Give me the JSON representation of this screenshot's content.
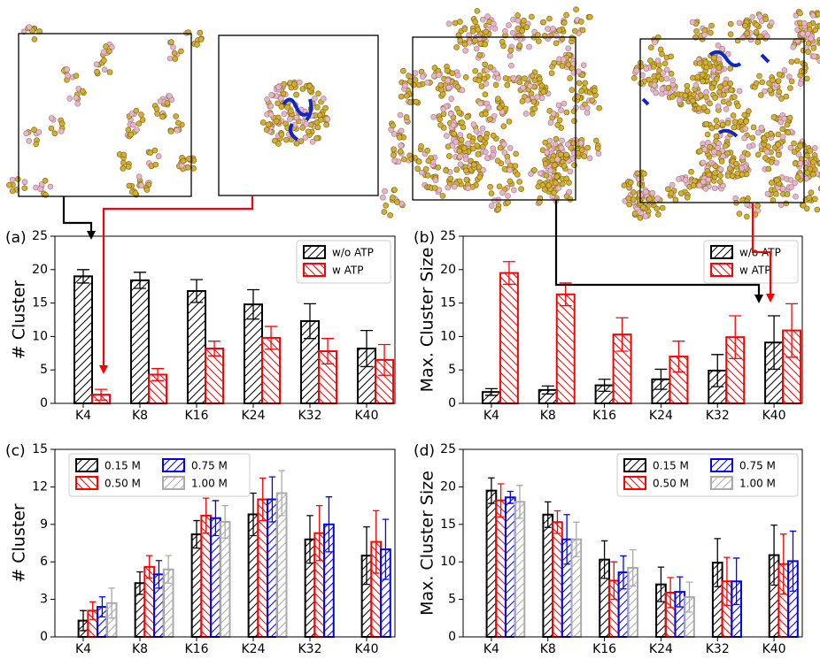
{
  "chart_data": [
    {
      "type": "bar",
      "label": "(a)",
      "ylabel": "# Cluster",
      "categories": [
        "K4",
        "K8",
        "K16",
        "K24",
        "K32",
        "K40"
      ],
      "ylim": [
        0,
        25
      ],
      "yticks": [
        0,
        5,
        10,
        15,
        20,
        25
      ],
      "legend": "upper right",
      "legend_columns": 1,
      "series": [
        {
          "name": "w/o ATP",
          "color": "#000000",
          "hatch": "/",
          "values": [
            19,
            18.4,
            16.8,
            14.8,
            12.3,
            8.2
          ],
          "errors": [
            1,
            1.2,
            1.7,
            2.2,
            2.6,
            2.7
          ]
        },
        {
          "name": "w ATP",
          "color": "#ff0000",
          "hatch": "\\",
          "values": [
            1.3,
            4.3,
            8.2,
            9.8,
            7.8,
            6.5
          ],
          "errors": [
            0.8,
            0.9,
            1.1,
            1.7,
            1.9,
            2.3
          ]
        }
      ]
    },
    {
      "type": "bar",
      "label": "(b)",
      "ylabel": "Max. Cluster Size",
      "categories": [
        "K4",
        "K8",
        "K16",
        "K24",
        "K32",
        "K40"
      ],
      "ylim": [
        0,
        25
      ],
      "yticks": [
        0,
        5,
        10,
        15,
        20,
        25
      ],
      "legend": "upper right",
      "legend_columns": 1,
      "series": [
        {
          "name": "w/o ATP",
          "color": "#000000",
          "hatch": "/",
          "values": [
            1.7,
            2.0,
            2.7,
            3.6,
            4.9,
            9.1
          ],
          "errors": [
            0.5,
            0.6,
            0.9,
            1.5,
            2.4,
            4.0
          ]
        },
        {
          "name": "w ATP",
          "color": "#ff0000",
          "hatch": "\\",
          "values": [
            19.5,
            16.3,
            10.3,
            7.0,
            9.9,
            10.9
          ],
          "errors": [
            1.7,
            1.7,
            2.5,
            2.3,
            3.2,
            4.0
          ]
        }
      ]
    },
    {
      "type": "bar",
      "label": "(c)",
      "ylabel": "# Cluster",
      "categories": [
        "K4",
        "K8",
        "K16",
        "K24",
        "K32",
        "K40"
      ],
      "ylim": [
        0,
        15
      ],
      "yticks": [
        0,
        3,
        6,
        9,
        12,
        15
      ],
      "legend": "upper left",
      "legend_columns": 2,
      "series": [
        {
          "name": "0.15 M",
          "color": "#000000",
          "hatch": "/",
          "values": [
            1.3,
            4.3,
            8.2,
            9.8,
            7.8,
            6.5
          ],
          "errors": [
            0.8,
            0.9,
            1.1,
            1.7,
            1.9,
            2.3
          ]
        },
        {
          "name": "0.50 M",
          "color": "#ff0000",
          "hatch": "\\",
          "values": [
            2.1,
            5.6,
            9.7,
            11.0,
            8.3,
            7.6
          ],
          "errors": [
            0.7,
            0.9,
            1.4,
            1.7,
            2.2,
            2.5
          ]
        },
        {
          "name": "0.75 M",
          "color": "#0000ff",
          "hatch": "/",
          "values": [
            2.4,
            5.0,
            9.5,
            11.0,
            9.0,
            7.0
          ],
          "errors": [
            0.8,
            1.1,
            1.4,
            1.8,
            2.2,
            2.4
          ]
        },
        {
          "name": "1.00 M",
          "color": "#aaaaaa",
          "hatch": "/",
          "values": [
            2.7,
            5.4,
            9.2,
            11.5,
            null,
            null
          ],
          "errors": [
            1.2,
            1.1,
            1.3,
            1.8,
            null,
            null
          ]
        }
      ]
    },
    {
      "type": "bar",
      "label": "(d)",
      "ylabel": "Max. Cluster Size",
      "categories": [
        "K4",
        "K8",
        "K16",
        "K24",
        "K32",
        "K40"
      ],
      "ylim": [
        0,
        25
      ],
      "yticks": [
        0,
        5,
        10,
        15,
        20,
        25
      ],
      "legend": "upper right",
      "legend_columns": 2,
      "series": [
        {
          "name": "0.15 M",
          "color": "#000000",
          "hatch": "/",
          "values": [
            19.5,
            16.3,
            10.3,
            7.0,
            9.9,
            10.9
          ],
          "errors": [
            1.7,
            1.7,
            2.5,
            2.3,
            3.2,
            4.0
          ]
        },
        {
          "name": "0.50 M",
          "color": "#ff0000",
          "hatch": "\\",
          "values": [
            18.2,
            15.3,
            7.5,
            5.9,
            7.4,
            9.7
          ],
          "errors": [
            2.2,
            1.5,
            2.5,
            2.0,
            3.2,
            4.0
          ]
        },
        {
          "name": "0.75 M",
          "color": "#0000ff",
          "hatch": "/",
          "values": [
            18.6,
            13.0,
            8.6,
            6.0,
            7.4,
            10.1
          ],
          "errors": [
            0.8,
            3.3,
            2.2,
            2.0,
            3.1,
            4.0
          ]
        },
        {
          "name": "1.00 M",
          "color": "#aaaaaa",
          "hatch": "/",
          "values": [
            18.0,
            13.0,
            9.2,
            5.3,
            null,
            null
          ],
          "errors": [
            2.2,
            2.3,
            2.4,
            2.0,
            null,
            null
          ]
        }
      ]
    }
  ]
}
